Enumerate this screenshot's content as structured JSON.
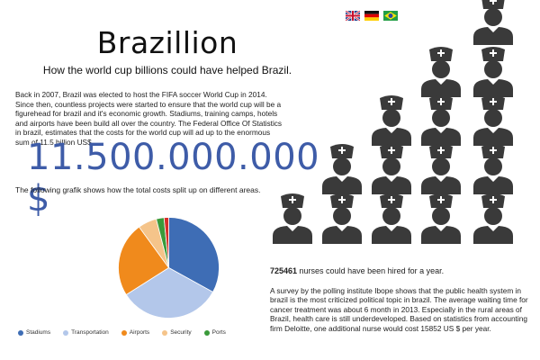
{
  "header": {
    "title": "Brazillion",
    "subtitle": "How the world cup billions could have helped Brazil."
  },
  "intro_text": "Back in 2007, Brazil was elected to host the FIFA soccer World Cup in 2014. Since then, countless projects were started to ensure that the world cup will be a figurehead for brazil and it's economic growth. Stadiums, training camps, hotels and airports have been build all over the country. The Federal Office Of Statistics in brazil, estimates that the costs for the world cup will ad up to the enormous sum of 11.5 billion US$.",
  "total_cost": "11.500.000.000 $",
  "chart_intro": "The following grafik shows how the total costs split up on different areas.",
  "languages": [
    {
      "name": "uk-flag-icon"
    },
    {
      "name": "germany-flag-icon"
    },
    {
      "name": "brazil-flag-icon"
    }
  ],
  "chart_data": {
    "type": "pie",
    "series": [
      {
        "name": "Stadiums",
        "value": 33,
        "color": "#3e6db5"
      },
      {
        "name": "Transportation",
        "value": 33,
        "color": "#b3c7ea"
      },
      {
        "name": "Airports",
        "value": 24,
        "color": "#f08a1c"
      },
      {
        "name": "Security",
        "value": 6,
        "color": "#f5c48a"
      },
      {
        "name": "Ports",
        "value": 2.5,
        "color": "#3a9a3a"
      },
      {
        "name": "",
        "value": 1.5,
        "color": "#d6302a"
      }
    ],
    "legend_position": "bottom"
  },
  "nurses": {
    "icon": "nurse-icon",
    "color": "#3a3a3a",
    "count_text": "725461",
    "suffix_text": " nurses could have been hired for a year."
  },
  "survey_text": "A survey by the polling institute Ibope shows that the public health system in brazil is the most criticized political topic in brazil. The average waiting time for cancer treatment was about 6 month in 2013. Especially in the rural areas of Brazil, health care is still underdeveloped. Based on statistics from accounting firm Deloitte, one additional nurse would cost 15852 US $ per year."
}
